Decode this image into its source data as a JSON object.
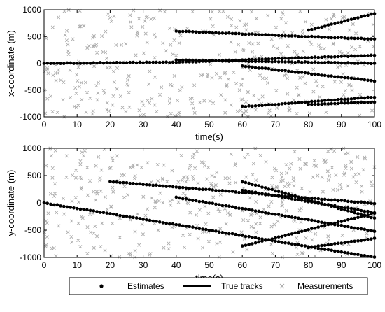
{
  "chart_data": [
    {
      "type": "scatter",
      "xlabel": "time(s)",
      "ylabel": "x-coordinate (m)",
      "xlim": [
        0,
        100
      ],
      "ylim": [
        -1000,
        1000
      ],
      "xticks": [
        "0",
        "10",
        "20",
        "30",
        "40",
        "50",
        "60",
        "70",
        "80",
        "90",
        "100"
      ],
      "yticks": [
        "-1000",
        "-500",
        "0",
        "500",
        "1000"
      ],
      "grid": false,
      "tracks": [
        {
          "t": [
            0,
            40,
            100
          ],
          "v": [
            0,
            20,
            150
          ]
        },
        {
          "t": [
            40,
            100
          ],
          "v": [
            600,
            450
          ]
        },
        {
          "t": [
            40,
            100
          ],
          "v": [
            60,
            0
          ]
        },
        {
          "t": [
            60,
            100
          ],
          "v": [
            -50,
            -330
          ]
        },
        {
          "t": [
            60,
            100
          ],
          "v": [
            -810,
            -630
          ]
        },
        {
          "t": [
            80,
            100
          ],
          "v": [
            -770,
            -720
          ]
        },
        {
          "t": [
            80,
            100
          ],
          "v": [
            620,
            930
          ]
        }
      ],
      "measurements_per_second": 4
    },
    {
      "type": "scatter",
      "xlabel": "time(s)",
      "ylabel": "y-coordinate (m)",
      "xlim": [
        0,
        100
      ],
      "ylim": [
        -1000,
        1000
      ],
      "xticks": [
        "0",
        "10",
        "20",
        "30",
        "40",
        "50",
        "60",
        "70",
        "80",
        "90",
        "100"
      ],
      "yticks": [
        "-1000",
        "-500",
        "0",
        "500",
        "1000"
      ],
      "grid": false,
      "tracks": [
        {
          "t": [
            0,
            100
          ],
          "v": [
            0,
            -1000
          ]
        },
        {
          "t": [
            20,
            100
          ],
          "v": [
            390,
            -10
          ]
        },
        {
          "t": [
            40,
            100
          ],
          "v": [
            100,
            -520
          ]
        },
        {
          "t": [
            60,
            100
          ],
          "v": [
            390,
            -280
          ]
        },
        {
          "t": [
            60,
            100
          ],
          "v": [
            230,
            -180
          ]
        },
        {
          "t": [
            60,
            100
          ],
          "v": [
            -790,
            -190
          ]
        },
        {
          "t": [
            80,
            100
          ],
          "v": [
            -820,
            -650
          ]
        }
      ],
      "measurements_per_second": 4
    }
  ],
  "legend": {
    "placement": "bottom",
    "items": [
      "Estimates",
      "True tracks",
      "Measurements"
    ]
  },
  "colors": {
    "estimates": "#000000",
    "true_tracks": "#000000",
    "measurements": "#aaaaaa"
  }
}
